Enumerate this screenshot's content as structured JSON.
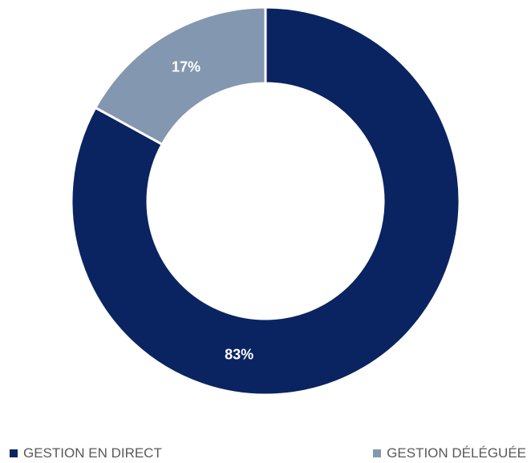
{
  "chart_data": {
    "type": "pie",
    "subtype": "donut",
    "title": "",
    "categories": [
      "GESTION EN DIRECT",
      "GESTION DÉLÉGUÉE"
    ],
    "values": [
      83,
      17
    ],
    "labels": [
      "83%",
      "17%"
    ],
    "colors": [
      "#0a2461",
      "#8497b0"
    ],
    "legend": {
      "placement": "bottom"
    }
  }
}
